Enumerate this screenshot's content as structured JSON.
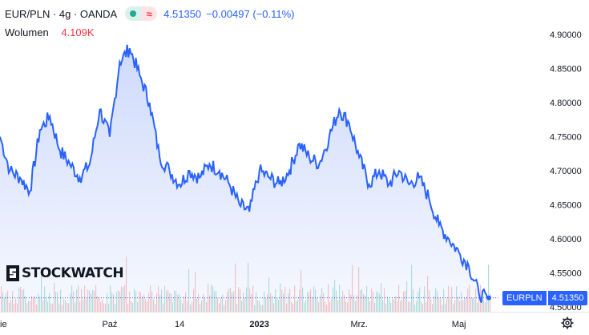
{
  "header": {
    "symbol": "EUR/PLN · 4g · OANDA",
    "price": "4.51350",
    "change": "−0.00497 (−0.11%)"
  },
  "volume": {
    "label": "Wolumen",
    "value": "4.109K"
  },
  "logo": {
    "text": "STOCKWATCH"
  },
  "price_tag": {
    "name": "EURPLN",
    "price": "4.51350"
  },
  "icons": {
    "settings": "gear-icon",
    "market-status": "dot-icon",
    "data-status": "wave-icon"
  },
  "colors": {
    "line": "#2962ff",
    "area_top": "#c9d6fb",
    "volume_up": "#8fd2c6",
    "volume_down": "#f5a6a6",
    "tag": "#2962ff"
  },
  "chart_data": {
    "type": "area",
    "y_ticks": [
      "4.90000",
      "4.85000",
      "4.80000",
      "4.75000",
      "4.70000",
      "4.65000",
      "4.60000",
      "4.55000",
      "4.50000"
    ],
    "ylim": [
      4.493,
      4.925
    ],
    "x_ticks": [
      "ie",
      "Paź",
      "14",
      "2023",
      "Mrz.",
      "Maj"
    ],
    "x_tick_pos": [
      0,
      11,
      18,
      26,
      36,
      46
    ],
    "last_price": 4.5135,
    "x": [
      0,
      1,
      2,
      3,
      4,
      5,
      6,
      7,
      8,
      9,
      10,
      11,
      12,
      13,
      14,
      15,
      16,
      17,
      18,
      19,
      20,
      21,
      22,
      23,
      24,
      25,
      26,
      27,
      28,
      29,
      30,
      31,
      32,
      33,
      34,
      35,
      36,
      37,
      38,
      39,
      40,
      41,
      42,
      43,
      44,
      45,
      46,
      47,
      48,
      49
    ],
    "values": [
      4.75,
      4.7,
      4.69,
      4.67,
      4.76,
      4.78,
      4.73,
      4.71,
      4.69,
      4.71,
      4.79,
      4.75,
      4.86,
      4.88,
      4.84,
      4.8,
      4.72,
      4.7,
      4.68,
      4.7,
      4.69,
      4.71,
      4.7,
      4.68,
      4.65,
      4.64,
      4.7,
      4.69,
      4.68,
      4.7,
      4.74,
      4.72,
      4.71,
      4.75,
      4.79,
      4.77,
      4.72,
      4.68,
      4.7,
      4.68,
      4.7,
      4.68,
      4.69,
      4.66,
      4.62,
      4.6,
      4.58,
      4.56,
      4.52,
      4.51
    ]
  }
}
